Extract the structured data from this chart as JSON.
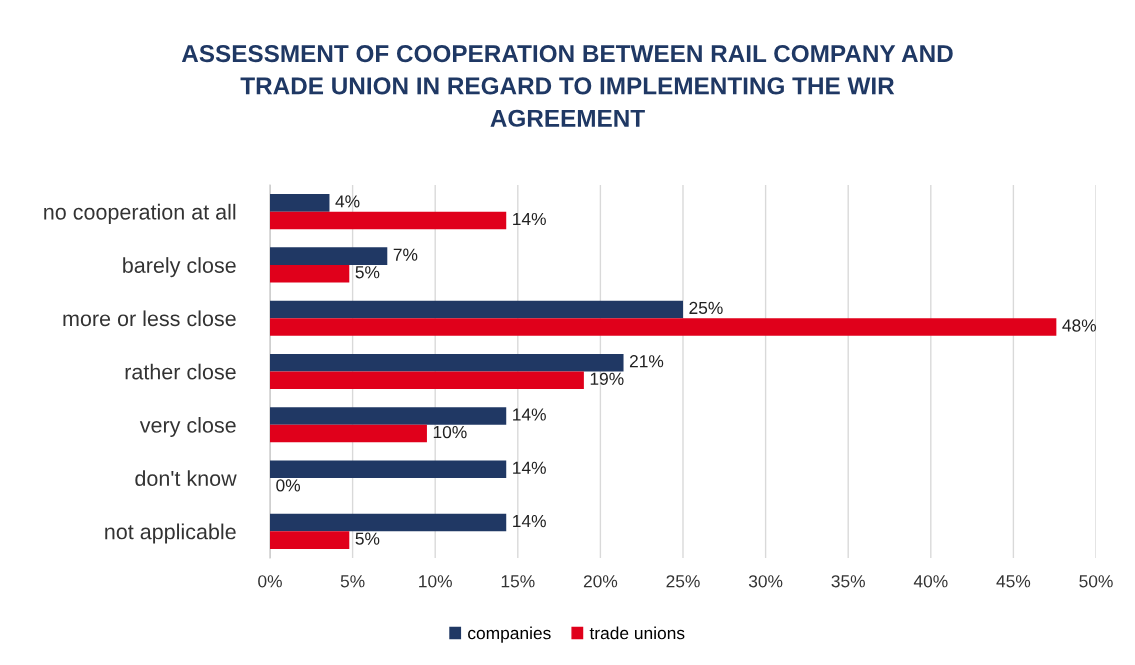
{
  "chart_data": {
    "type": "bar",
    "orientation": "horizontal",
    "title": "ASSESSMENT OF COOPERATION BETWEEN RAIL COMPANY AND\nTRADE UNION IN REGARD TO IMPLEMENTING THE WIR\nAGREEMENT",
    "categories": [
      "no cooperation at all",
      "barely close",
      "more or less close",
      "rather close",
      "very close",
      "don't know",
      "not applicable"
    ],
    "series": [
      {
        "name": "companies",
        "color": "#203864",
        "values": [
          3.6,
          7.1,
          25.0,
          21.4,
          14.3,
          14.3,
          14.3
        ],
        "value_labels": [
          "4%",
          "7%",
          "25%",
          "21%",
          "14%",
          "14%",
          "14%"
        ]
      },
      {
        "name": "trade unions",
        "color": "#e0001b",
        "values": [
          14.3,
          4.8,
          47.6,
          19.0,
          9.5,
          0,
          4.8
        ],
        "value_labels": [
          "14%",
          "5%",
          "48%",
          "19%",
          "10%",
          "0%",
          "5%"
        ]
      }
    ],
    "xlim": [
      0,
      50
    ],
    "xticks": [
      {
        "value": 0,
        "label": "0%"
      },
      {
        "value": 5,
        "label": "5%"
      },
      {
        "value": 10,
        "label": "10%"
      },
      {
        "value": 15,
        "label": "15%"
      },
      {
        "value": 20,
        "label": "20%"
      },
      {
        "value": 25,
        "label": "25%"
      },
      {
        "value": 30,
        "label": "30%"
      },
      {
        "value": 35,
        "label": "35%"
      },
      {
        "value": 40,
        "label": "40%"
      },
      {
        "value": 45,
        "label": "45%"
      },
      {
        "value": 50,
        "label": "50%"
      }
    ],
    "grid": "x",
    "legend": "bottom"
  }
}
